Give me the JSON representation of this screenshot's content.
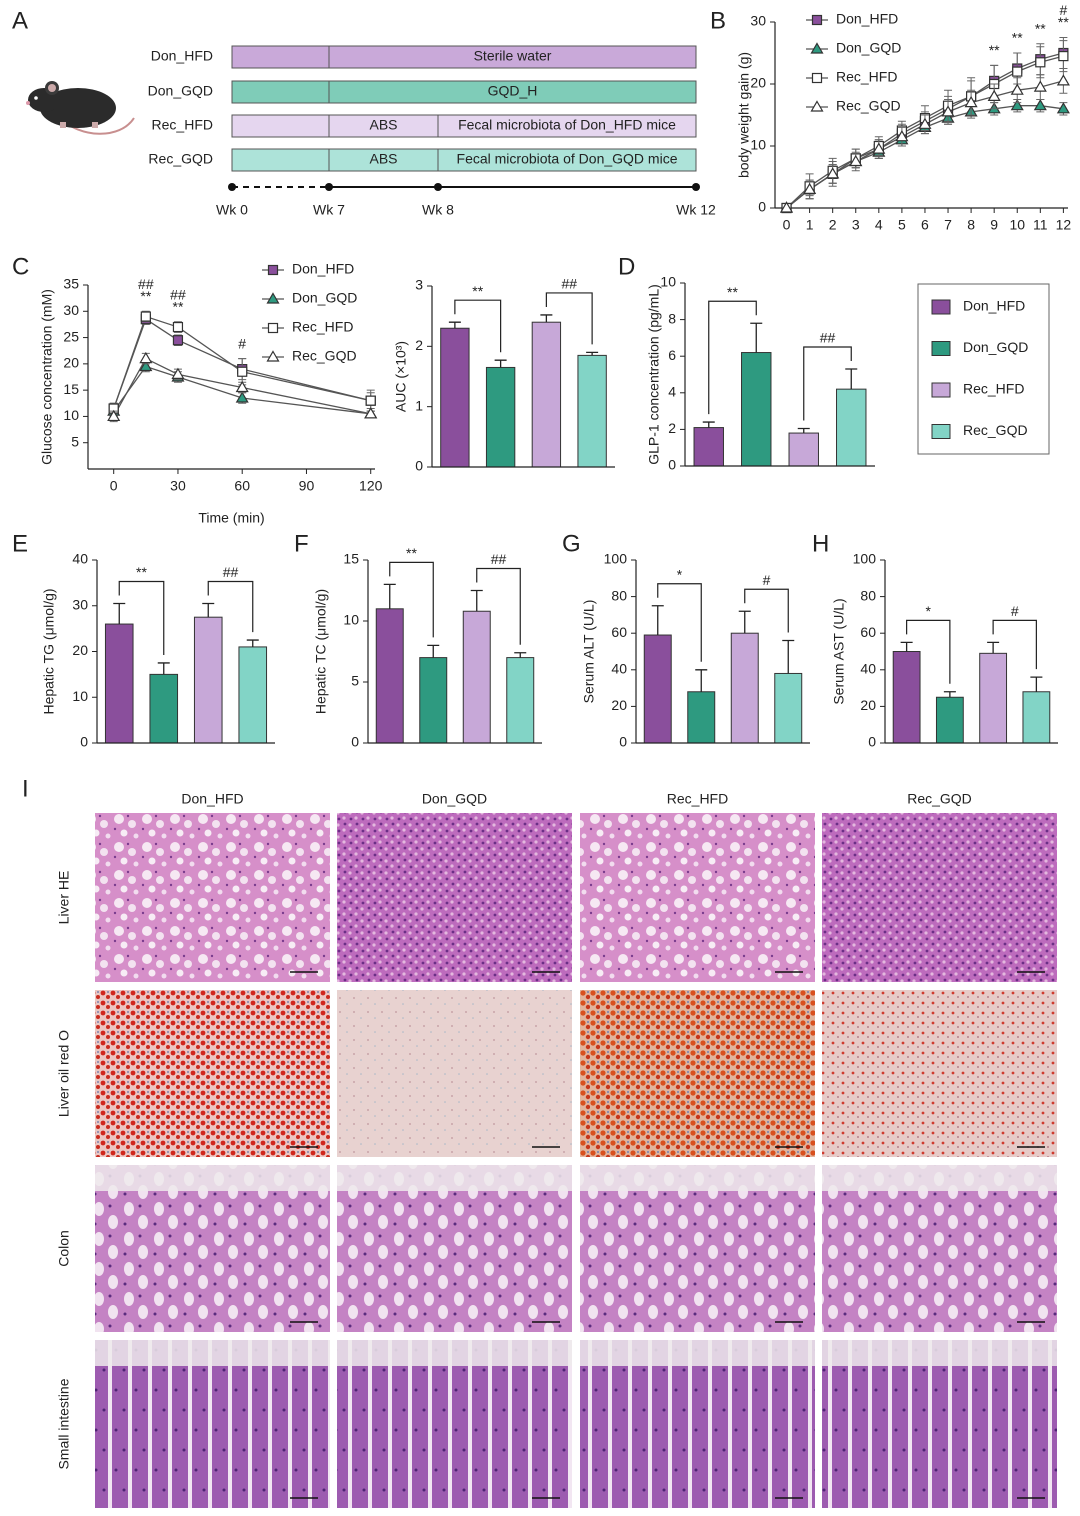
{
  "panels": [
    "A",
    "B",
    "C",
    "D",
    "E",
    "F",
    "G",
    "H",
    "I"
  ],
  "timeline": {
    "rows": [
      {
        "label": "Don_HFD",
        "color": "#c9a9d9",
        "segments": [
          "Sterile water"
        ]
      },
      {
        "label": "Don_GQD",
        "color": "#7fccb8",
        "segments": [
          "GQD_H"
        ]
      },
      {
        "label": "Rec_HFD",
        "color": "#e5d6ef",
        "segments": [
          "ABS",
          "Fecal microbiota of Don_HFD mice"
        ]
      },
      {
        "label": "Rec_GQD",
        "color": "#ade3d9",
        "segments": [
          "ABS",
          "Fecal microbiota of Don_GQD mice"
        ]
      }
    ],
    "weeks": [
      "Wk 0",
      "Wk 7",
      "Wk 8",
      "Wk 12"
    ]
  },
  "legend": [
    {
      "name": "Don_HFD",
      "color": "#8a4f9c"
    },
    {
      "name": "Don_GQD",
      "color": "#2e9a80"
    },
    {
      "name": "Rec_HFD",
      "color": "#c7a8d8"
    },
    {
      "name": "Rec_GQD",
      "color": "#82d4c6"
    }
  ],
  "chart_data": [
    {
      "type": "line",
      "y_label": "body weight gain (g)",
      "x": [
        0,
        1,
        2,
        3,
        4,
        5,
        6,
        7,
        8,
        9,
        10,
        11,
        12
      ],
      "xlim": [
        -0.5,
        12.2
      ],
      "xticks": [
        0,
        1,
        2,
        3,
        4,
        5,
        6,
        7,
        8,
        9,
        10,
        11,
        12
      ],
      "ylim": [
        0,
        30
      ],
      "yticks": [
        0,
        10,
        20,
        30
      ],
      "series": [
        {
          "name": "Don_HFD",
          "color": "#8a4f9c",
          "marker": "square",
          "values": [
            0,
            3,
            5.5,
            8,
            9.5,
            12,
            14,
            16,
            18,
            20.5,
            22.5,
            24,
            25
          ],
          "errors": [
            0,
            1.5,
            2,
            1.5,
            1.5,
            1.5,
            1.5,
            2,
            2.5,
            2.5,
            2.5,
            2.5,
            2.5
          ]
        },
        {
          "name": "Don_GQD",
          "color": "#2e9a80",
          "marker": "triangle",
          "values": [
            0,
            3,
            5.5,
            7.5,
            9,
            11,
            13,
            14.5,
            15.5,
            16,
            16.5,
            16.5,
            16
          ],
          "errors": [
            0,
            1,
            1.5,
            1,
            1,
            1,
            1,
            1,
            1,
            1,
            1,
            1,
            1
          ]
        },
        {
          "name": "Rec_HFD",
          "color": "#ffffff",
          "marker": "square",
          "values": [
            0,
            3.5,
            6,
            8,
            10,
            12.5,
            14.5,
            16.5,
            18,
            20,
            22,
            23.5,
            24.5
          ],
          "errors": [
            0,
            2,
            2,
            1.5,
            1.5,
            1.5,
            2,
            2.5,
            3,
            3,
            3,
            2.5,
            2.5
          ]
        },
        {
          "name": "Rec_GQD",
          "color": "#ffffff",
          "marker": "triangle",
          "values": [
            0,
            3,
            5.5,
            7.5,
            9.5,
            11.5,
            13.5,
            15.5,
            17,
            18,
            19,
            19.5,
            20.5
          ],
          "errors": [
            0,
            1.5,
            1.5,
            1.5,
            1.5,
            1.5,
            1.5,
            2,
            2,
            2,
            2,
            2,
            2
          ]
        }
      ],
      "annotations": [
        {
          "x": 9,
          "label": "**"
        },
        {
          "x": 10,
          "label": "**"
        },
        {
          "x": 11,
          "label": "**"
        },
        {
          "x": 12,
          "label": "**"
        },
        {
          "x": 12,
          "label": "#"
        }
      ]
    },
    {
      "type": "line",
      "x_label": "Time (min)",
      "y_label": "Glucose concentration (mM)",
      "x": [
        0,
        15,
        30,
        60,
        120
      ],
      "xlim": [
        -12,
        122
      ],
      "xticks": [
        0,
        30,
        60,
        90,
        120
      ],
      "ylim": [
        0,
        35
      ],
      "yticks": [
        5,
        10,
        15,
        20,
        25,
        30,
        35
      ],
      "series": [
        {
          "name": "Don_HFD",
          "color": "#8a4f9c",
          "marker": "square",
          "values": [
            11.5,
            28.5,
            24.5,
            19,
            13
          ],
          "errors": [
            1,
            1,
            1,
            2,
            2
          ]
        },
        {
          "name": "Don_GQD",
          "color": "#2e9a80",
          "marker": "triangle",
          "values": [
            11,
            19.5,
            17.5,
            13.5,
            10.5
          ],
          "errors": [
            1,
            1,
            1,
            1,
            0.5
          ]
        },
        {
          "name": "Rec_HFD",
          "color": "#ffffff",
          "marker": "square",
          "values": [
            11.5,
            29,
            27,
            18.5,
            13
          ],
          "errors": [
            1,
            1,
            1,
            2.5,
            1.5
          ]
        },
        {
          "name": "Rec_GQD",
          "color": "#ffffff",
          "marker": "triangle",
          "values": [
            10,
            21,
            18,
            15.5,
            10.5
          ],
          "errors": [
            1,
            1,
            1,
            1,
            0.5
          ]
        }
      ],
      "annotations": [
        {
          "x": 15,
          "label": "**"
        },
        {
          "x": 15,
          "label": "##"
        },
        {
          "x": 30,
          "label": "**"
        },
        {
          "x": 30,
          "label": "##"
        },
        {
          "x": 60,
          "label": "#"
        }
      ]
    },
    {
      "type": "bar",
      "y_label": "AUC (×10³)",
      "ylim": [
        0,
        3
      ],
      "yticks": [
        0,
        1,
        2,
        3
      ],
      "values": [
        2.3,
        1.65,
        2.4,
        1.85
      ],
      "errors": [
        0.1,
        0.12,
        0.12,
        0.05
      ],
      "colors": [
        "#8a4f9c",
        "#2e9a80",
        "#c7a8d8",
        "#82d4c6"
      ],
      "significance": [
        "**",
        "##"
      ]
    },
    {
      "type": "bar",
      "y_label": "GLP-1 concentration (pg/mL)",
      "ylim": [
        0,
        10
      ],
      "yticks": [
        0,
        2,
        4,
        6,
        8,
        10
      ],
      "values": [
        2.1,
        6.2,
        1.8,
        4.2
      ],
      "errors": [
        0.3,
        1.6,
        0.25,
        1.1
      ],
      "colors": [
        "#8a4f9c",
        "#2e9a80",
        "#c7a8d8",
        "#82d4c6"
      ],
      "significance": [
        "**",
        "##"
      ]
    },
    {
      "type": "bar",
      "y_label": "Hepatic TG (μmol/g)",
      "ylim": [
        0,
        40
      ],
      "yticks": [
        0,
        10,
        20,
        30,
        40
      ],
      "values": [
        26,
        15,
        27.5,
        21
      ],
      "errors": [
        4.5,
        2.5,
        3,
        1.5
      ],
      "colors": [
        "#8a4f9c",
        "#2e9a80",
        "#c7a8d8",
        "#82d4c6"
      ],
      "significance": [
        "**",
        "##"
      ]
    },
    {
      "type": "bar",
      "y_label": "Hepatic TC (μmol/g)",
      "ylim": [
        0,
        15
      ],
      "yticks": [
        0,
        5,
        10,
        15
      ],
      "values": [
        11,
        7,
        10.8,
        7
      ],
      "errors": [
        2,
        1,
        1.7,
        0.4
      ],
      "colors": [
        "#8a4f9c",
        "#2e9a80",
        "#c7a8d8",
        "#82d4c6"
      ],
      "significance": [
        "**",
        "##"
      ]
    },
    {
      "type": "bar",
      "y_label": "Serum ALT (U/L)",
      "ylim": [
        0,
        100
      ],
      "yticks": [
        0,
        20,
        40,
        60,
        80,
        100
      ],
      "values": [
        59,
        28,
        60,
        38
      ],
      "errors": [
        16,
        12,
        12,
        18
      ],
      "colors": [
        "#8a4f9c",
        "#2e9a80",
        "#c7a8d8",
        "#82d4c6"
      ],
      "significance": [
        "*",
        "#"
      ]
    },
    {
      "type": "bar",
      "y_label": "Serum AST (U/L)",
      "ylim": [
        0,
        100
      ],
      "yticks": [
        0,
        20,
        40,
        60,
        80,
        100
      ],
      "values": [
        50,
        25,
        49,
        28
      ],
      "errors": [
        5,
        3,
        6,
        8
      ],
      "colors": [
        "#8a4f9c",
        "#2e9a80",
        "#c7a8d8",
        "#82d4c6"
      ],
      "significance": [
        "*",
        "#"
      ]
    }
  ],
  "histology": {
    "columns": [
      "Don_HFD",
      "Don_GQD",
      "Rec_HFD",
      "Rec_GQD"
    ],
    "rows": [
      "Liver HE",
      "Liver oil red O",
      "Colon",
      "Small intestine"
    ]
  }
}
